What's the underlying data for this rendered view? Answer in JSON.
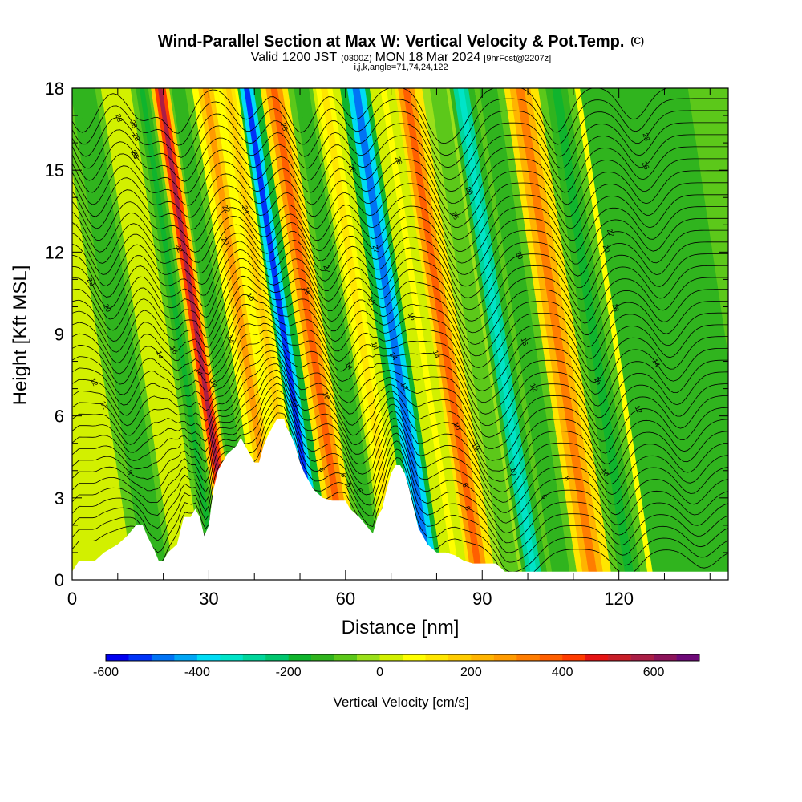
{
  "chart_data": {
    "type": "heatmap",
    "title": "Wind-Parallel Section at Max W: Vertical Velocity & Pot.Temp.",
    "title_mark": "(C)",
    "subtitle_prefix": "Valid 1200 JST",
    "subtitle_small_1": "(0300Z)",
    "subtitle_mid": "MON 18 Mar 2024",
    "subtitle_small_2": "[9hrFcst@2207z]",
    "subtitle2": "i,j,k,angle=71,74,24,122",
    "xlabel": "Distance [nm]",
    "ylabel": "Height [Kft MSL]",
    "xlim": [
      0,
      144
    ],
    "ylim": [
      0,
      18
    ],
    "x_ticks": [
      0,
      30,
      60,
      90,
      120
    ],
    "y_ticks": [
      0,
      3,
      6,
      9,
      12,
      15,
      18
    ],
    "colorbar": {
      "label": "Vertical Velocity [cm/s]",
      "ticks": [
        -600,
        -400,
        -200,
        0,
        200,
        400,
        600
      ],
      "range": [
        -600,
        700
      ],
      "step": 50,
      "colors": [
        "#0000f0",
        "#0033f8",
        "#0073f5",
        "#00a6f5",
        "#00dcf5",
        "#00e4c8",
        "#00d69b",
        "#00c66e",
        "#10b42d",
        "#30b41e",
        "#5cc81a",
        "#9ae01a",
        "#d2f000",
        "#ffff00",
        "#ffe600",
        "#ffcc00",
        "#ffb400",
        "#ff9b00",
        "#ff7d00",
        "#ff5f00",
        "#ff3c00",
        "#e61414",
        "#c81e28",
        "#aa1e46",
        "#8c145a",
        "#6e0a78"
      ]
    },
    "velocity_bands": [
      {
        "x": 4,
        "w": 0
      },
      {
        "x": 14,
        "w": -150
      },
      {
        "x": 22,
        "w": 0
      },
      {
        "x": 27,
        "w": -200
      },
      {
        "x": 31,
        "w": 550
      },
      {
        "x": 35,
        "w": -150
      },
      {
        "x": 41,
        "w": 250
      },
      {
        "x": 46,
        "w": 150
      },
      {
        "x": 50,
        "w": -520
      },
      {
        "x": 56,
        "w": 350
      },
      {
        "x": 62,
        "w": -150
      },
      {
        "x": 67,
        "w": 100
      },
      {
        "x": 74,
        "w": -480
      },
      {
        "x": 80,
        "w": 50
      },
      {
        "x": 85,
        "w": 380
      },
      {
        "x": 92,
        "w": -100
      },
      {
        "x": 97,
        "w": -350
      },
      {
        "x": 103,
        "w": -150
      },
      {
        "x": 110,
        "w": 300
      },
      {
        "x": 118,
        "w": -200
      },
      {
        "x": 126,
        "w": 150
      },
      {
        "x": 135,
        "w": -150
      }
    ],
    "terrain": [
      [
        0,
        0.3
      ],
      [
        1.5,
        0.7
      ],
      [
        5,
        0.7
      ],
      [
        7,
        1.0
      ],
      [
        10,
        1.3
      ],
      [
        12,
        1.6
      ],
      [
        14,
        2.0
      ],
      [
        15.5,
        2.0
      ],
      [
        16.5,
        1.6
      ],
      [
        18,
        1.1
      ],
      [
        19,
        0.7
      ],
      [
        20,
        0.7
      ],
      [
        21,
        1.0
      ],
      [
        23,
        1.3
      ],
      [
        24.5,
        2.3
      ],
      [
        26,
        2.3
      ],
      [
        27,
        2.6
      ],
      [
        28,
        2.3
      ],
      [
        29,
        1.6
      ],
      [
        30,
        2.0
      ],
      [
        31,
        3.3
      ],
      [
        32,
        4.0
      ],
      [
        34,
        4.6
      ],
      [
        36,
        4.9
      ],
      [
        37,
        5.2
      ],
      [
        38,
        4.9
      ],
      [
        39,
        4.6
      ],
      [
        40,
        4.3
      ],
      [
        41,
        4.3
      ],
      [
        42,
        4.9
      ],
      [
        43,
        5.3
      ],
      [
        44,
        5.6
      ],
      [
        45,
        5.9
      ],
      [
        46.5,
        5.9
      ],
      [
        47,
        5.6
      ],
      [
        48,
        5.3
      ],
      [
        49,
        4.9
      ],
      [
        50,
        4.3
      ],
      [
        51,
        3.9
      ],
      [
        52,
        3.6
      ],
      [
        53,
        3.3
      ],
      [
        55,
        3.0
      ],
      [
        57,
        2.9
      ],
      [
        60,
        2.9
      ],
      [
        61,
        2.6
      ],
      [
        63,
        2.3
      ],
      [
        65,
        1.9
      ],
      [
        66,
        1.7
      ],
      [
        67,
        2.3
      ],
      [
        68,
        2.6
      ],
      [
        69,
        3.3
      ],
      [
        70,
        3.9
      ],
      [
        71,
        4.2
      ],
      [
        72,
        4.2
      ],
      [
        73,
        3.9
      ],
      [
        74,
        3.3
      ],
      [
        75,
        2.6
      ],
      [
        76,
        1.9
      ],
      [
        78,
        1.3
      ],
      [
        80,
        1.0
      ],
      [
        82,
        1.0
      ],
      [
        84,
        0.9
      ],
      [
        86,
        0.7
      ],
      [
        88,
        0.6
      ],
      [
        90,
        0.6
      ],
      [
        93,
        0.6
      ],
      [
        95,
        0.3
      ],
      [
        98,
        0.3
      ],
      [
        144,
        0.3
      ]
    ],
    "theta_label_count": 62
  }
}
